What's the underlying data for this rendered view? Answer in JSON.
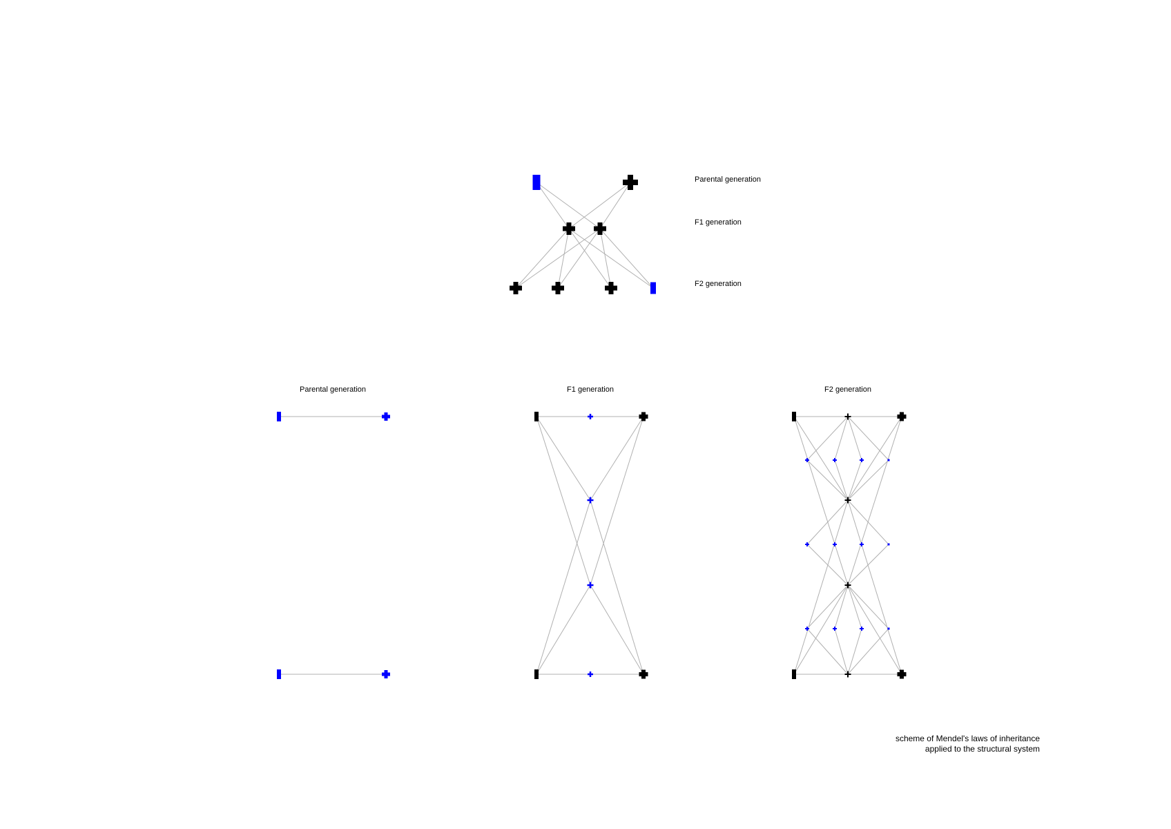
{
  "top_diagram": {
    "labels": [
      "Parental generation",
      "F1 generation",
      "F2 generation"
    ]
  },
  "panels": [
    {
      "title": "Parental generation"
    },
    {
      "title": "F1 generation"
    },
    {
      "title": "F2 generation"
    }
  ],
  "caption": {
    "line1": "scheme of Mendel's laws of inheritance",
    "line2": "applied to the structural system"
  },
  "colors": {
    "blue": "#0000ff",
    "black": "#000000",
    "edge": "#b0b0b0"
  }
}
